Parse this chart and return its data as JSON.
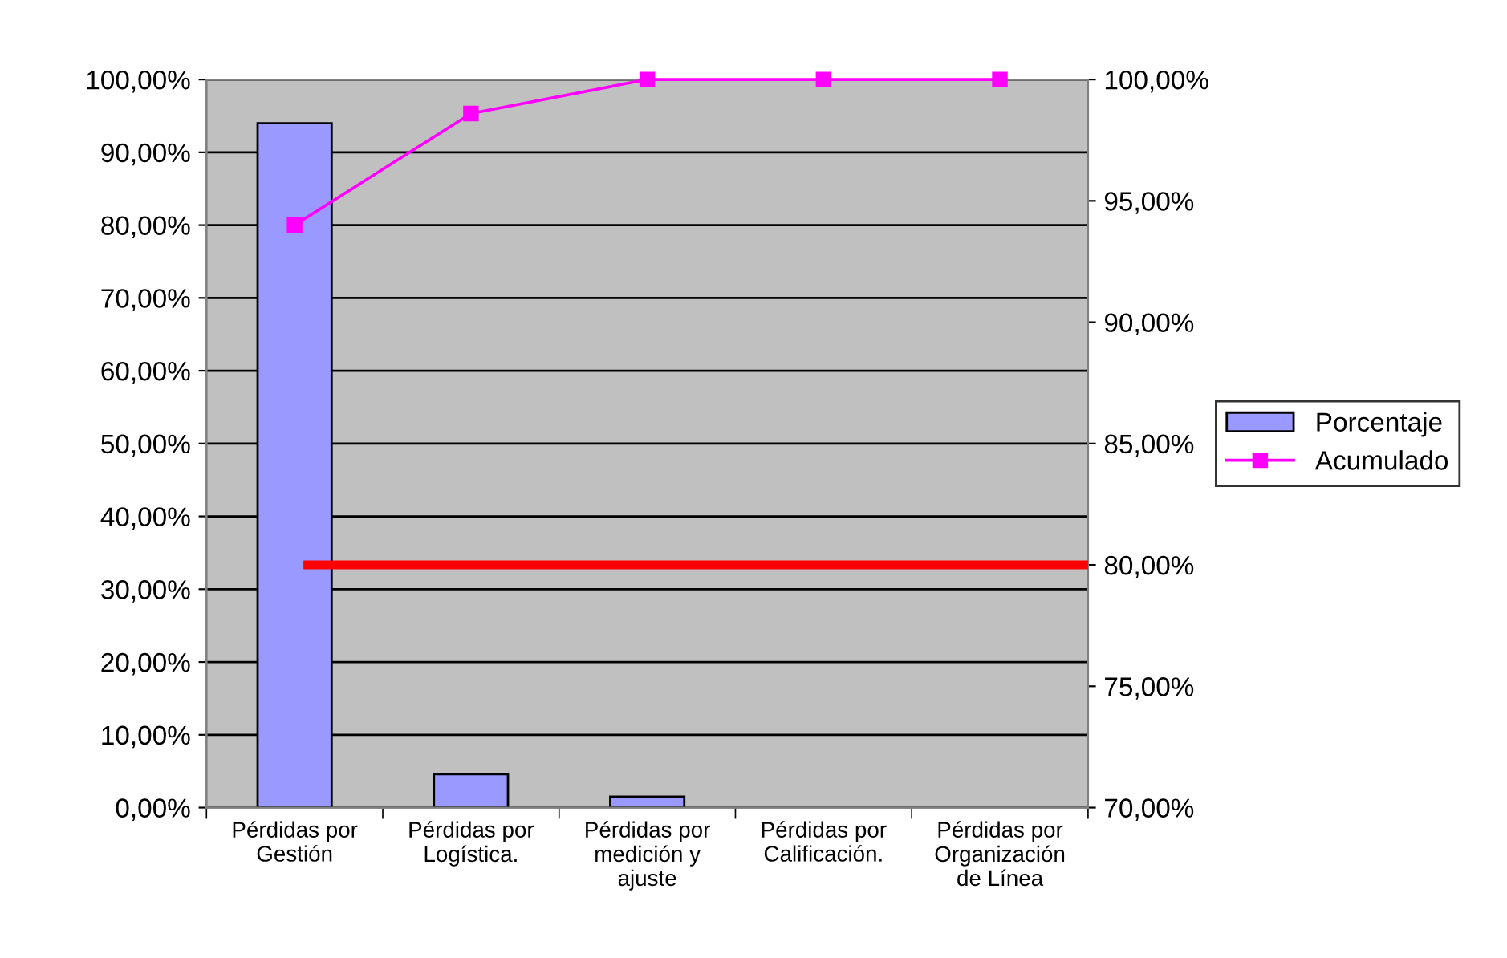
{
  "chart_data": {
    "type": "bar",
    "categories": [
      "Pérdidas por\nGestión",
      "Pérdidas por\nLogística.",
      "Pérdidas por\nmedición y\najuste",
      "Pérdidas por\nCalificación.",
      "Pérdidas por\nOrganización\nde Línea"
    ],
    "series": [
      {
        "name": "Porcentaje",
        "color": "#9999ff",
        "values": [
          94.0,
          4.6,
          1.5,
          0,
          0
        ]
      },
      {
        "name": "Acumulado",
        "type": "line",
        "axis": "y2",
        "color": "#ff00ff",
        "marker": "square",
        "values": [
          94.0,
          98.6,
          100,
          100,
          100
        ]
      }
    ],
    "ylim": [
      0,
      100
    ],
    "yticks": [
      {
        "value": 0,
        "label": "0,00%"
      },
      {
        "value": 10,
        "label": "10,00%"
      },
      {
        "value": 20,
        "label": "20,00%"
      },
      {
        "value": 30,
        "label": "30,00%"
      },
      {
        "value": 40,
        "label": "40,00%"
      },
      {
        "value": 50,
        "label": "50,00%"
      },
      {
        "value": 60,
        "label": "60,00%"
      },
      {
        "value": 70,
        "label": "70,00%"
      },
      {
        "value": 80,
        "label": "80,00%"
      },
      {
        "value": 90,
        "label": "90,00%"
      },
      {
        "value": 100,
        "label": "100,00%"
      }
    ],
    "y2lim": [
      70,
      100
    ],
    "y2ticks": [
      {
        "value": 70,
        "label": "70,00%"
      },
      {
        "value": 75,
        "label": "75,00%"
      },
      {
        "value": 80,
        "label": "80,00%"
      },
      {
        "value": 85,
        "label": "85,00%"
      },
      {
        "value": 90,
        "label": "90,00%"
      },
      {
        "value": 95,
        "label": "95,00%"
      },
      {
        "value": 100,
        "label": "100,00%"
      }
    ],
    "ref_lines": [
      {
        "axis": "y2",
        "value": 80,
        "color": "#ff0000"
      }
    ],
    "grid": "y",
    "legend": "right"
  }
}
